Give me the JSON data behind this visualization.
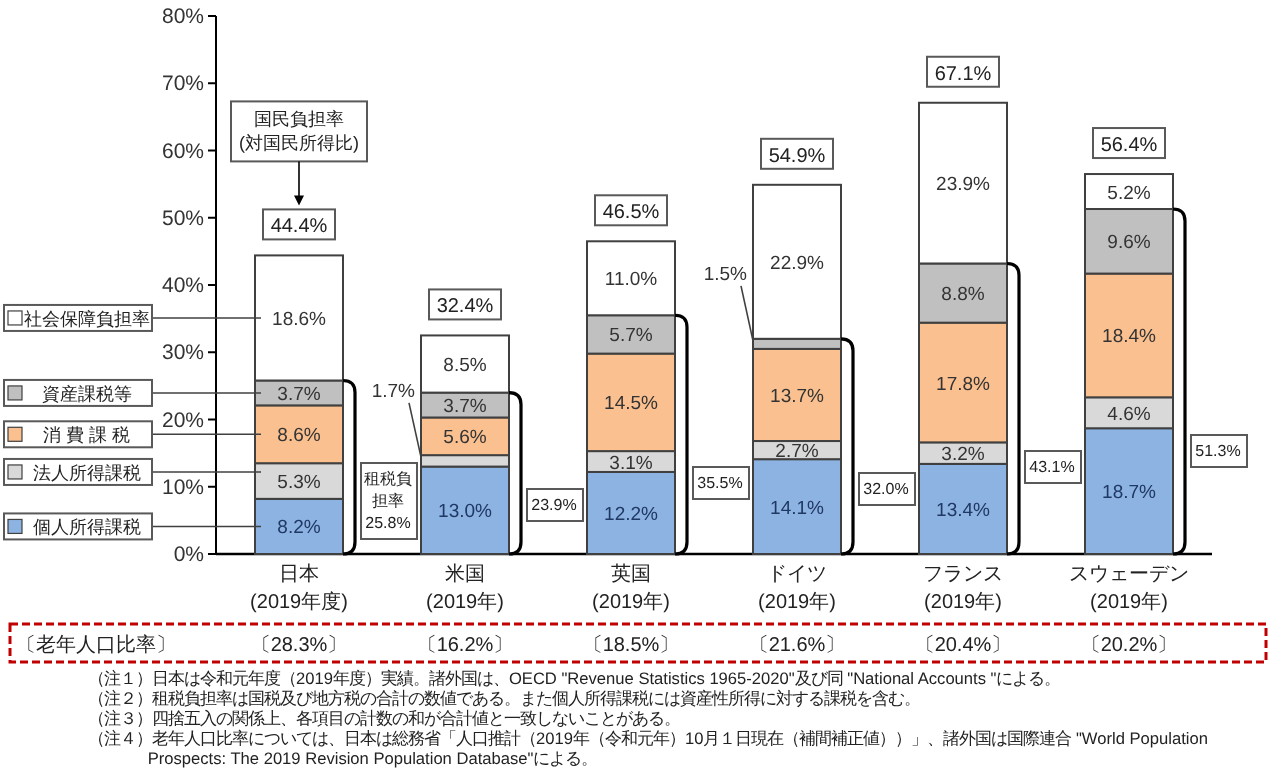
{
  "chart_data": {
    "type": "bar",
    "stacked": true,
    "legend": "left",
    "categories": [
      "日本\n(2019年度)",
      "米国\n(2019年)",
      "英国\n(2019年)",
      "ドイツ\n(2019年)",
      "フランス\n(2019年)",
      "スウェーデン\n(2019年)"
    ],
    "series": [
      {
        "name": "個人所得課税",
        "color": "#8db3e2",
        "values": [
          8.2,
          13.0,
          12.2,
          14.1,
          13.4,
          18.7
        ],
        "value_labels": [
          "8.2%",
          "13.0%",
          "12.2%",
          "14.1%",
          "13.4%",
          "18.7%"
        ]
      },
      {
        "name": "法人所得課税",
        "color": "#d9d9d9",
        "values": [
          5.3,
          1.7,
          3.1,
          2.7,
          3.2,
          4.6
        ],
        "value_labels": [
          "5.3%",
          "1.7%",
          "3.1%",
          "2.7%",
          "3.2%",
          "4.6%"
        ]
      },
      {
        "name": "消 費 課 税",
        "color": "#fac090",
        "values": [
          8.6,
          5.6,
          14.5,
          13.7,
          17.8,
          18.4
        ],
        "value_labels": [
          "8.6%",
          "5.6%",
          "14.5%",
          "13.7%",
          "17.8%",
          "18.4%"
        ]
      },
      {
        "name": "資産課税等",
        "color": "#c0c0c0",
        "values": [
          3.7,
          3.7,
          5.7,
          1.5,
          8.8,
          9.6
        ],
        "value_labels": [
          "3.7%",
          "3.7%",
          "5.7%",
          "1.5%",
          "8.8%",
          "9.6%"
        ]
      },
      {
        "name": "社会保障負担率",
        "color": "#ffffff",
        "values": [
          18.6,
          8.5,
          11.0,
          22.9,
          23.9,
          5.2
        ],
        "value_labels": [
          "18.6%",
          "8.5%",
          "11.0%",
          "22.9%",
          "23.9%",
          "5.2%"
        ]
      }
    ],
    "totals": [
      "44.4%",
      "32.4%",
      "46.5%",
      "54.9%",
      "67.1%",
      "56.4%"
    ],
    "ylim": [
      0,
      80
    ],
    "yticks": [
      {
        "value": 0,
        "label": "0%"
      },
      {
        "value": 10,
        "label": "10%"
      },
      {
        "value": 20,
        "label": "20%"
      },
      {
        "value": 30,
        "label": "30%"
      },
      {
        "value": 40,
        "label": "40%"
      },
      {
        "value": 50,
        "label": "50%"
      },
      {
        "value": 60,
        "label": "60%"
      },
      {
        "value": 70,
        "label": "70%"
      },
      {
        "value": 80,
        "label": "80%"
      }
    ],
    "annotations": [
      "国民負担率\n(対国民所得比)",
      "租税負担率25.8%",
      "23.9%",
      "35.5%",
      "32.0%",
      "43.1%",
      "51.3%",
      "〔老年人口比率〕",
      "〔28.3%〕",
      "〔16.2%〕",
      "〔18.5%〕",
      "〔21.6%〕",
      "〔20.4%〕",
      "〔20.2%〕",
      "（注１）日本は令和元年度（2019年度）実績。諸外国は、OECD \"Revenue Statistics 1965-2020\"及び同 \"National Accounts \"による。",
      "（注２）租税負担率は国税及び地方税の合計の数値である。また個人所得課税には資産性所得に対する課税を含む。",
      "（注３）四捨五入の関係上、各項目の計数の和が合計値と一致しないことがある。",
      "（注４）老年人口比率については、日本は総務省「人口推計（2019年（令和元年）10月１日現在（補間補正値））」、諸外国は国際連合 \"World Population Prospects: The 2019 Revision Population Database\"による。"
    ]
  }
}
